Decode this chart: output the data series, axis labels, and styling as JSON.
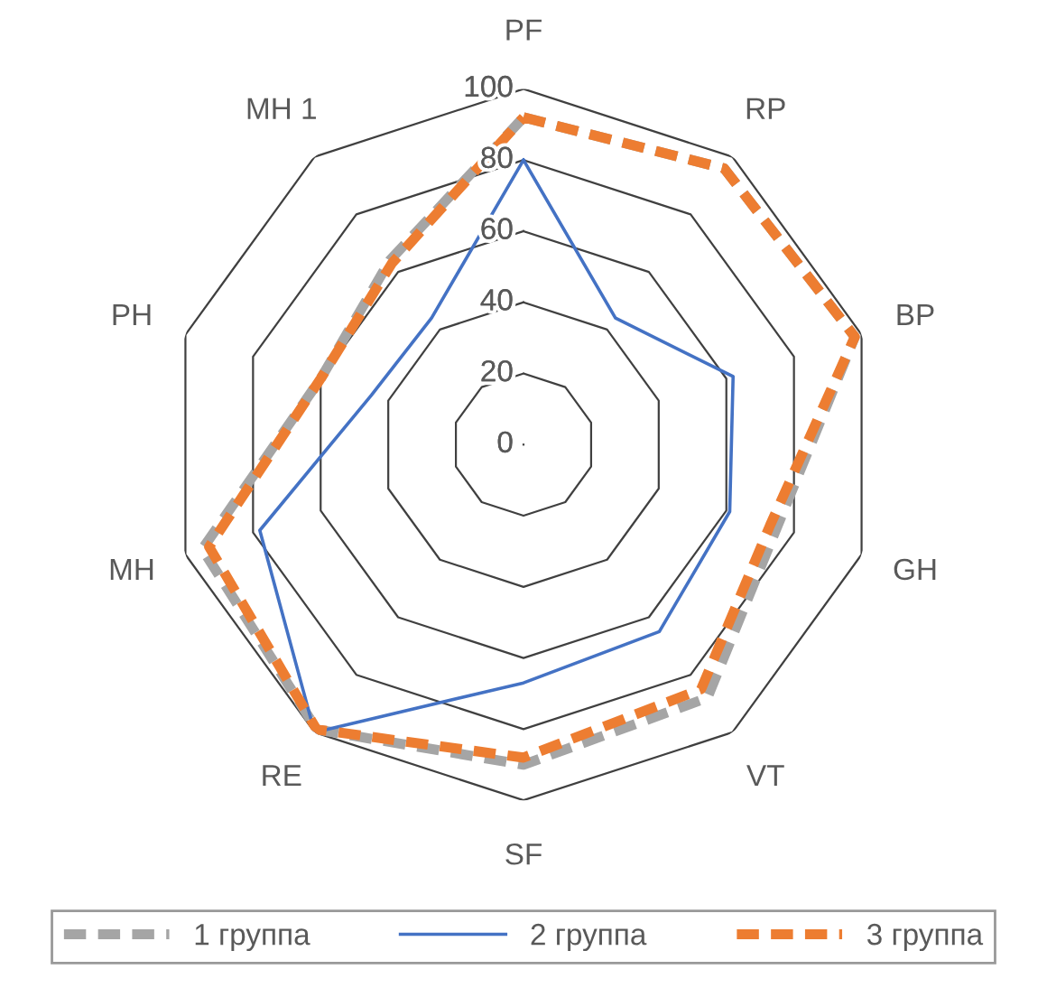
{
  "chart_data": {
    "type": "radar",
    "categories": [
      "PF",
      "RP",
      "BP",
      "GH",
      "VT",
      "SF",
      "RE",
      "MH",
      "PH",
      "MH 1"
    ],
    "ylim": [
      0,
      100
    ],
    "yticks": [
      0,
      20,
      40,
      60,
      80,
      100
    ],
    "grid": true,
    "legend": "bottom",
    "series": [
      {
        "name": "1 группа",
        "color": "#a5a5a5",
        "line_style": "dashed",
        "values": [
          92,
          96,
          98,
          75,
          88,
          90,
          99,
          95,
          60,
          64
        ]
      },
      {
        "name": "2 группа",
        "color": "#4472c4",
        "line_style": "solid",
        "values": [
          80,
          44,
          62,
          61,
          65,
          67,
          100,
          78,
          45,
          44
        ]
      },
      {
        "name": "3 группа",
        "color": "#ed7d31",
        "line_style": "dashed",
        "values": [
          92,
          96,
          98,
          73,
          85,
          88,
          99,
          93,
          60,
          63
        ]
      }
    ]
  }
}
